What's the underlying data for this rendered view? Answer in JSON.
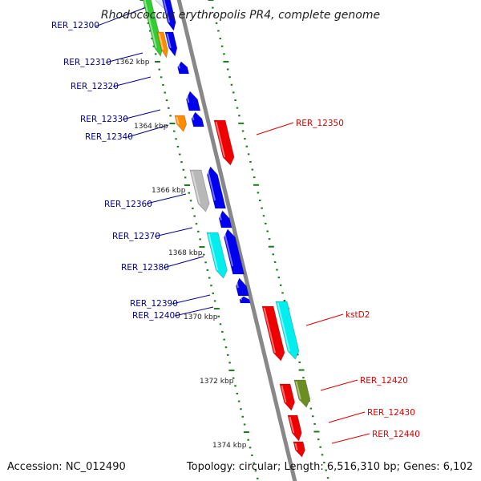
{
  "title": "Rhodococcus erythropolis PR4, complete genome",
  "footer": {
    "accession": "Accession: NC_012490",
    "summary": "Topology: circular; Length: 6,516,310 bp; Genes: 6,102"
  },
  "colors": {
    "left_label": "#00008b",
    "right_label": "#dd0000",
    "backbone": "#888888",
    "tick": "#1a7a1a",
    "blue": "#0000ee",
    "red": "#ee0000",
    "cyan": "#00eeee",
    "gray": "#b8b8b8",
    "orange": "#ff8c00",
    "green": "#33cc33",
    "olive": "#6b8e23"
  },
  "ticks": [
    {
      "label": "1362 kbp"
    },
    {
      "label": "1364 kbp"
    },
    {
      "label": "1366 kbp"
    },
    {
      "label": "1368 kbp"
    },
    {
      "label": "1370 kbp"
    },
    {
      "label": "1372 kbp"
    },
    {
      "label": "1374 kbp"
    }
  ],
  "left_labels": [
    {
      "text": "RER_12300"
    },
    {
      "text": "RER_12310"
    },
    {
      "text": "RER_12320"
    },
    {
      "text": "RER_12330"
    },
    {
      "text": "RER_12340"
    },
    {
      "text": "RER_12360"
    },
    {
      "text": "RER_12370"
    },
    {
      "text": "RER_12380"
    },
    {
      "text": "RER_12390"
    },
    {
      "text": "RER_12400"
    }
  ],
  "right_labels": [
    {
      "text": "RER_12350"
    },
    {
      "text": "kstD2"
    },
    {
      "text": "RER_12420"
    },
    {
      "text": "RER_12430"
    },
    {
      "text": "RER_12440"
    }
  ]
}
